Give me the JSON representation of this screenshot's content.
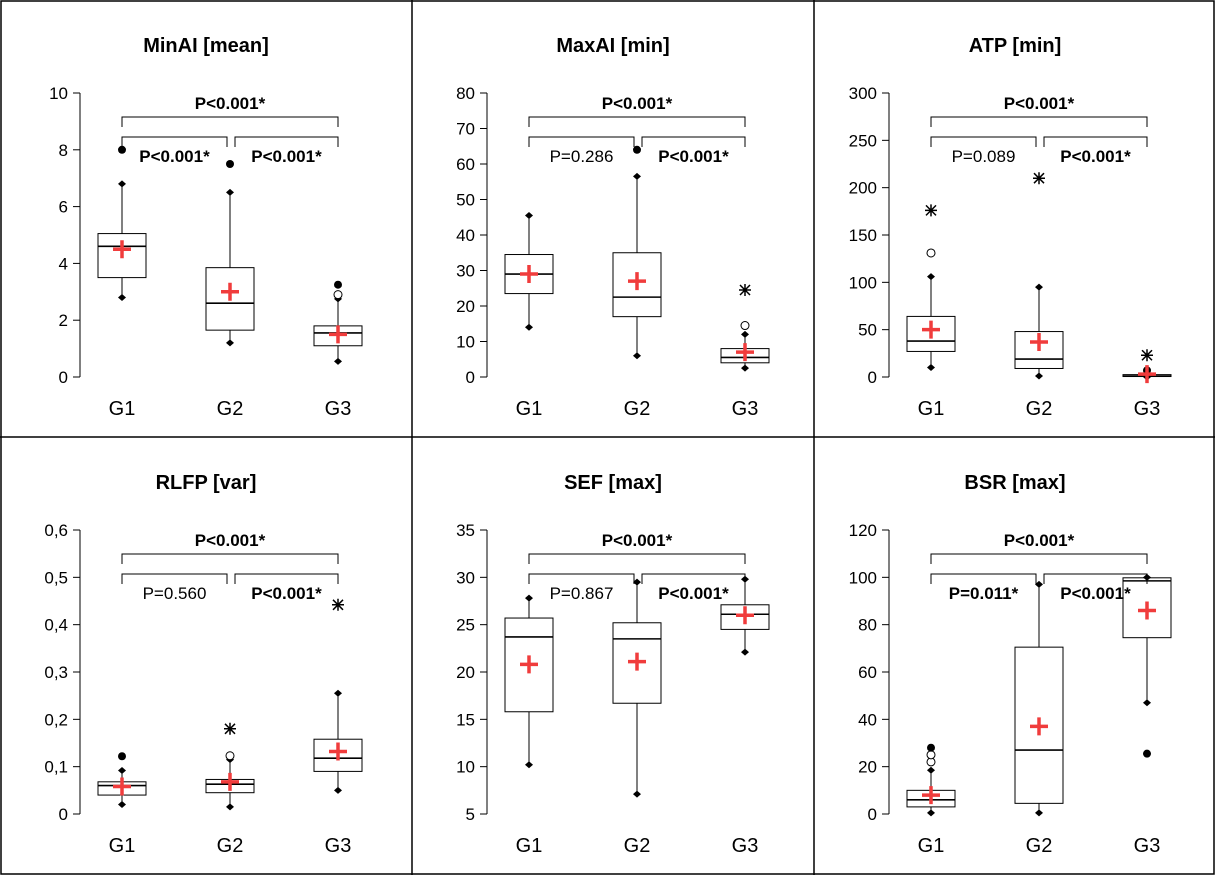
{
  "chart_data": [
    {
      "type": "box",
      "title": "MinAI [mean]",
      "categories": [
        "G1",
        "G2",
        "G3"
      ],
      "ylim": [
        0,
        10
      ],
      "yticks": [
        "0",
        "2",
        "4",
        "6",
        "8",
        "10"
      ],
      "boxes": [
        {
          "name": "G1",
          "min": 2.8,
          "q1": 3.5,
          "median": 4.6,
          "q3": 5.05,
          "max": 6.8,
          "mean": 4.5,
          "outliers": [
            {
              "v": 8.0,
              "kind": "filled"
            }
          ]
        },
        {
          "name": "G2",
          "min": 1.2,
          "q1": 1.65,
          "median": 2.6,
          "q3": 3.85,
          "max": 6.5,
          "mean": 3.0,
          "outliers": [
            {
              "v": 7.5,
              "kind": "filled"
            }
          ]
        },
        {
          "name": "G3",
          "min": 0.55,
          "q1": 1.1,
          "median": 1.55,
          "q3": 1.8,
          "max": 2.75,
          "mean": 1.5,
          "outliers": [
            {
              "v": 2.9,
              "kind": "open"
            },
            {
              "v": 3.25,
              "kind": "filled"
            }
          ]
        }
      ],
      "comparisons": [
        {
          "pair": [
            "G1",
            "G3"
          ],
          "label": "P<0.001*",
          "bold": true
        },
        {
          "pair": [
            "G1",
            "G2"
          ],
          "label": "P<0.001*",
          "bold": true
        },
        {
          "pair": [
            "G2",
            "G3"
          ],
          "label": "P<0.001*",
          "bold": true
        }
      ]
    },
    {
      "type": "box",
      "title": "MaxAI [min]",
      "categories": [
        "G1",
        "G2",
        "G3"
      ],
      "ylim": [
        0,
        80
      ],
      "yticks": [
        "0",
        "10",
        "20",
        "30",
        "40",
        "50",
        "60",
        "70",
        "80"
      ],
      "boxes": [
        {
          "name": "G1",
          "min": 14,
          "q1": 23.5,
          "median": 29,
          "q3": 34.5,
          "max": 45.5,
          "mean": 29,
          "outliers": []
        },
        {
          "name": "G2",
          "min": 6,
          "q1": 17,
          "median": 22.5,
          "q3": 35,
          "max": 56.5,
          "mean": 27,
          "outliers": [
            {
              "v": 64,
              "kind": "filled"
            }
          ]
        },
        {
          "name": "G3",
          "min": 2.5,
          "q1": 4,
          "median": 5.5,
          "q3": 8,
          "max": 12,
          "mean": 7,
          "outliers": [
            {
              "v": 14.5,
              "kind": "open"
            },
            {
              "v": 24.5,
              "kind": "star"
            }
          ]
        }
      ],
      "comparisons": [
        {
          "pair": [
            "G1",
            "G3"
          ],
          "label": "P<0.001*",
          "bold": true
        },
        {
          "pair": [
            "G1",
            "G2"
          ],
          "label": "P=0.286",
          "bold": false
        },
        {
          "pair": [
            "G2",
            "G3"
          ],
          "label": "P<0.001*",
          "bold": true
        }
      ]
    },
    {
      "type": "box",
      "title": "ATP [min]",
      "categories": [
        "G1",
        "G2",
        "G3"
      ],
      "ylim": [
        0,
        300
      ],
      "yticks": [
        "0",
        "50",
        "100",
        "150",
        "200",
        "250",
        "300"
      ],
      "boxes": [
        {
          "name": "G1",
          "min": 10,
          "q1": 27,
          "median": 38,
          "q3": 64,
          "max": 106,
          "mean": 50,
          "outliers": [
            {
              "v": 131,
              "kind": "open"
            },
            {
              "v": 176,
              "kind": "star"
            }
          ]
        },
        {
          "name": "G2",
          "min": 1,
          "q1": 9,
          "median": 19,
          "q3": 48,
          "max": 95,
          "mean": 37,
          "outliers": [
            {
              "v": 210,
              "kind": "star"
            }
          ]
        },
        {
          "name": "G3",
          "min": 0,
          "q1": 0.5,
          "median": 1,
          "q3": 2.5,
          "max": 4,
          "mean": 3,
          "outliers": [
            {
              "v": 7,
              "kind": "filled"
            },
            {
              "v": 23,
              "kind": "star"
            }
          ]
        }
      ],
      "comparisons": [
        {
          "pair": [
            "G1",
            "G3"
          ],
          "label": "P<0.001*",
          "bold": true
        },
        {
          "pair": [
            "G1",
            "G2"
          ],
          "label": "P=0.089",
          "bold": false
        },
        {
          "pair": [
            "G2",
            "G3"
          ],
          "label": "P<0.001*",
          "bold": true
        }
      ]
    },
    {
      "type": "box",
      "title": "RLFP [var]",
      "categories": [
        "G1",
        "G2",
        "G3"
      ],
      "ylim": [
        0,
        0.6
      ],
      "yticks": [
        "0",
        "0,1",
        "0,2",
        "0,3",
        "0,4",
        "0,5",
        "0,6"
      ],
      "boxes": [
        {
          "name": "G1",
          "min": 0.02,
          "q1": 0.04,
          "median": 0.06,
          "q3": 0.068,
          "max": 0.092,
          "mean": 0.058,
          "outliers": [
            {
              "v": 0.122,
              "kind": "filled"
            }
          ]
        },
        {
          "name": "G2",
          "min": 0.015,
          "q1": 0.045,
          "median": 0.063,
          "q3": 0.073,
          "max": 0.115,
          "mean": 0.068,
          "outliers": [
            {
              "v": 0.123,
              "kind": "open"
            },
            {
              "v": 0.18,
              "kind": "star"
            }
          ]
        },
        {
          "name": "G3",
          "min": 0.05,
          "q1": 0.09,
          "median": 0.118,
          "q3": 0.158,
          "max": 0.255,
          "mean": 0.132,
          "outliers": [
            {
              "v": 0.442,
              "kind": "star"
            }
          ]
        }
      ],
      "comparisons": [
        {
          "pair": [
            "G1",
            "G3"
          ],
          "label": "P<0.001*",
          "bold": true
        },
        {
          "pair": [
            "G1",
            "G2"
          ],
          "label": "P=0.560",
          "bold": false
        },
        {
          "pair": [
            "G2",
            "G3"
          ],
          "label": "P<0.001*",
          "bold": true
        }
      ]
    },
    {
      "type": "box",
      "title": "SEF [max]",
      "categories": [
        "G1",
        "G2",
        "G3"
      ],
      "ylim": [
        5,
        35
      ],
      "yticks": [
        "5",
        "10",
        "15",
        "20",
        "25",
        "30",
        "35"
      ],
      "boxes": [
        {
          "name": "G1",
          "min": 10.2,
          "q1": 15.8,
          "median": 23.7,
          "q3": 25.7,
          "max": 27.8,
          "mean": 20.8,
          "outliers": []
        },
        {
          "name": "G2",
          "min": 7.1,
          "q1": 16.7,
          "median": 23.5,
          "q3": 25.2,
          "max": 29.5,
          "mean": 21.1,
          "outliers": []
        },
        {
          "name": "G3",
          "min": 22.1,
          "q1": 24.5,
          "median": 26.1,
          "q3": 27.1,
          "max": 29.8,
          "mean": 26.0,
          "outliers": []
        }
      ],
      "comparisons": [
        {
          "pair": [
            "G1",
            "G3"
          ],
          "label": "P<0.001*",
          "bold": true
        },
        {
          "pair": [
            "G1",
            "G2"
          ],
          "label": "P=0.867",
          "bold": false
        },
        {
          "pair": [
            "G2",
            "G3"
          ],
          "label": "P<0.001*",
          "bold": true
        }
      ]
    },
    {
      "type": "box",
      "title": "BSR [max]",
      "categories": [
        "G1",
        "G2",
        "G3"
      ],
      "ylim": [
        0,
        120
      ],
      "yticks": [
        "0",
        "20",
        "40",
        "60",
        "80",
        "100",
        "120"
      ],
      "boxes": [
        {
          "name": "G1",
          "min": 0.5,
          "q1": 3,
          "median": 6,
          "q3": 10,
          "max": 18.5,
          "mean": 8,
          "outliers": [
            {
              "v": 22,
              "kind": "open"
            },
            {
              "v": 25,
              "kind": "open"
            },
            {
              "v": 28,
              "kind": "filled"
            }
          ]
        },
        {
          "name": "G2",
          "min": 0.5,
          "q1": 4.5,
          "median": 27,
          "q3": 70.5,
          "max": 97,
          "mean": 37,
          "outliers": []
        },
        {
          "name": "G3",
          "min": 47,
          "q1": 74.5,
          "median": 98.5,
          "q3": 99.8,
          "max": 100,
          "mean": 86,
          "outliers": [
            {
              "v": 25.5,
              "kind": "filled"
            }
          ]
        }
      ],
      "comparisons": [
        {
          "pair": [
            "G1",
            "G3"
          ],
          "label": "P<0.001*",
          "bold": true
        },
        {
          "pair": [
            "G1",
            "G2"
          ],
          "label": "P=0.011*",
          "bold": true
        },
        {
          "pair": [
            "G2",
            "G3"
          ],
          "label": "P<0.001*",
          "bold": true
        }
      ]
    }
  ],
  "colors": {
    "mean_marker": "#f03c3c",
    "line": "#000000",
    "border": "#000000"
  }
}
